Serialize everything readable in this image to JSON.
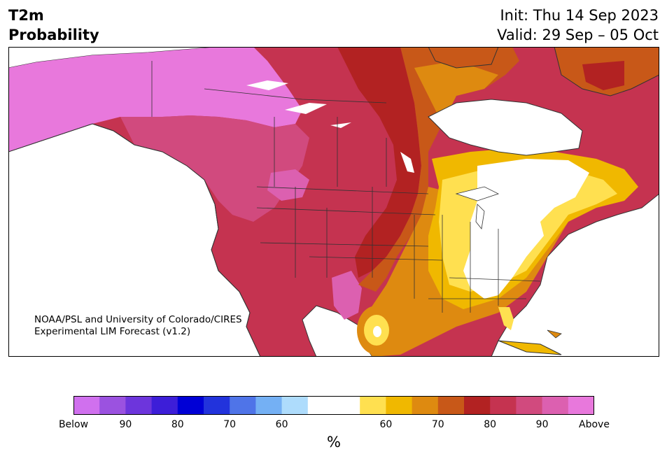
{
  "header": {
    "title_line1": "T2m",
    "title_line2": "Probability",
    "init_text": "Init: Thu 14 Sep 2023",
    "valid_text": "Valid: 29 Sep – 05 Oct"
  },
  "credit": {
    "line1": "NOAA/PSL and University of Colorado/CIRES",
    "line2": "Experimental LIM Forecast (v1.2)"
  },
  "colorbar": {
    "colors": [
      "#d070ee",
      "#9b52e0",
      "#6d35dc",
      "#3d1ed8",
      "#0000d6",
      "#2233dc",
      "#4f74e8",
      "#74b0f4",
      "#aedcfc",
      "#ffffff",
      "#ffffff",
      "#ffe050",
      "#f0b800",
      "#de8a10",
      "#c85818",
      "#b22222",
      "#c53350",
      "#d14a7e",
      "#dc60b0",
      "#e878dc"
    ],
    "tick_labels": [
      "Below",
      "90",
      "80",
      "70",
      "60",
      "60",
      "70",
      "80",
      "90",
      "Above"
    ],
    "unit_label": "%"
  },
  "map": {
    "region": "North America",
    "category_colors": {
      "above_90": "#e878dc",
      "above_80_90": "#d14a7e",
      "above_70_80": "#c53350",
      "above_60_70": "#b22222",
      "above_50_60": "#de8a10",
      "near_normal": "#ffffff",
      "above_low": "#ffe050",
      "above_mid": "#f0b800"
    }
  }
}
